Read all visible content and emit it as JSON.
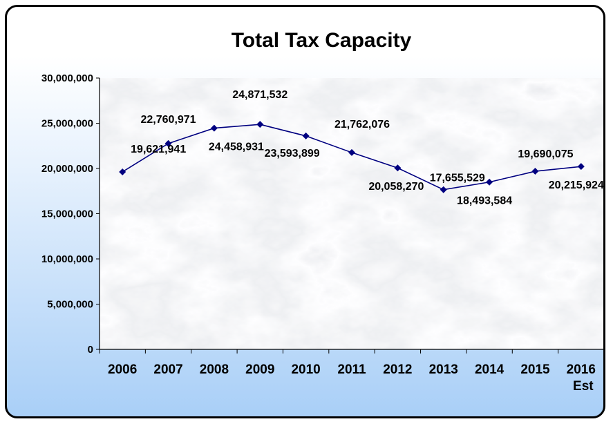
{
  "chart_data": {
    "type": "line",
    "title": "Total Tax Capacity",
    "xlabel": "",
    "ylabel": "",
    "categories": [
      "2006",
      "2007",
      "2008",
      "2009",
      "2010",
      "2011",
      "2012",
      "2013",
      "2014",
      "2015",
      "2016"
    ],
    "category_sublabels": [
      "",
      "",
      "",
      "",
      "",
      "",
      "",
      "",
      "",
      "",
      "Est"
    ],
    "series": [
      {
        "values": [
          19621941,
          22760971,
          24458931,
          24871532,
          23593899,
          21762076,
          20058270,
          17655529,
          18493584,
          19690075,
          20215924
        ],
        "labels": [
          "19,621,941",
          "22,760,971",
          "24,458,931",
          "24,871,532",
          "23,593,899",
          "21,762,076",
          "20,058,270",
          "17,655,529",
          "18,493,584",
          "19,690,075",
          "20,215,924"
        ],
        "color": "#000080"
      }
    ],
    "ylim": [
      0,
      30000000
    ],
    "yticks": [
      0,
      5000000,
      10000000,
      15000000,
      20000000,
      25000000,
      30000000
    ],
    "ytick_labels": [
      "0",
      "5,000,000",
      "10,000,000",
      "15,000,000",
      "20,000,000",
      "25,000,000",
      "30,000,000"
    ],
    "grid": false,
    "legend": "none",
    "plot_background": "marble texture"
  }
}
